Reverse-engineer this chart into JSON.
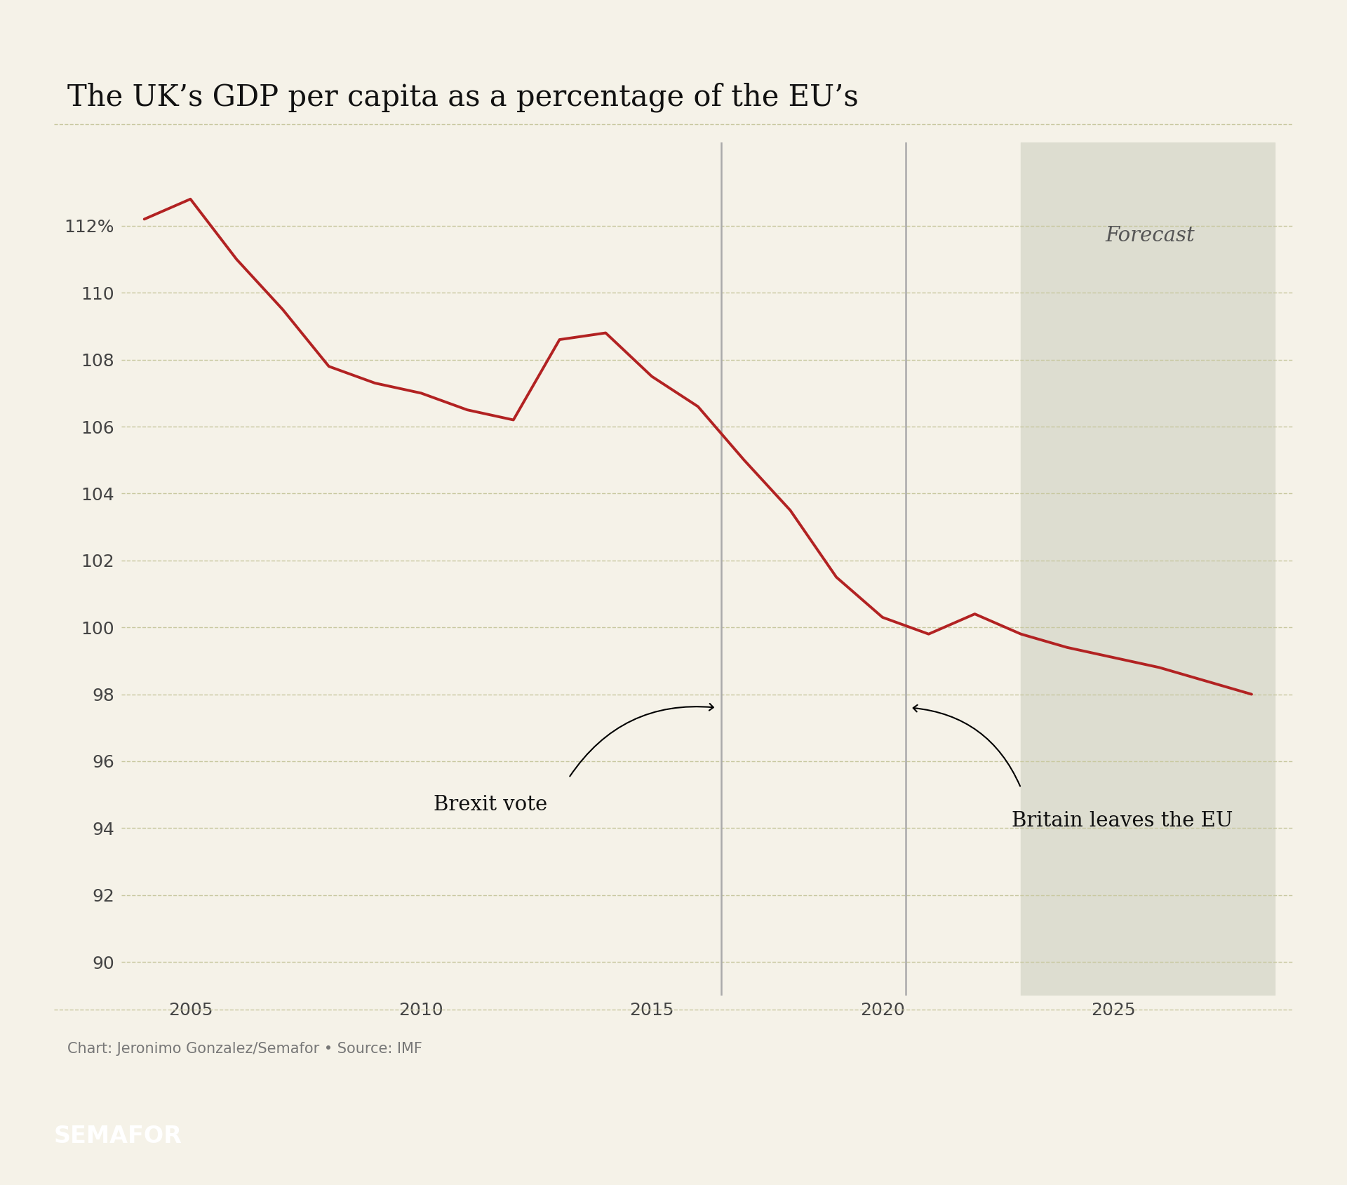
{
  "title": "The UK’s GDP per capita as a percentage of the EU’s",
  "background_color": "#f5f2e8",
  "line_color": "#b22222",
  "line_width": 2.8,
  "years": [
    2004,
    2005,
    2006,
    2007,
    2008,
    2009,
    2010,
    2011,
    2012,
    2013,
    2014,
    2015,
    2016,
    2017,
    2018,
    2019,
    2020,
    2021,
    2022,
    2023,
    2024,
    2025,
    2026,
    2027,
    2028
  ],
  "values": [
    112.2,
    112.8,
    111.0,
    109.5,
    107.8,
    107.3,
    107.0,
    106.5,
    106.2,
    108.6,
    108.8,
    107.5,
    106.6,
    105.0,
    103.5,
    101.5,
    100.3,
    99.8,
    100.4,
    99.8,
    99.4,
    99.1,
    98.8,
    98.4,
    98.0
  ],
  "brexit_vote_year": 2016.5,
  "britain_leaves_year": 2020.5,
  "forecast_start_year": 2023,
  "forecast_end_year": 2028.5,
  "xlim_left": 2003.5,
  "xlim_right": 2028.9,
  "ylim": [
    89.0,
    114.5
  ],
  "yticks": [
    90,
    92,
    94,
    96,
    98,
    100,
    102,
    104,
    106,
    108,
    110,
    112
  ],
  "xticks": [
    2005,
    2010,
    2015,
    2020,
    2025
  ],
  "grid_color": "#c8c8a0",
  "vline_color": "#aaaaaa",
  "forecast_bg_color": "#ddddd0",
  "footer_text": "Chart: Jeronimo Gonzalez/Semafor • Source: IMF",
  "semafor_text": "SEMAFOR",
  "title_fontsize": 30,
  "tick_fontsize": 18,
  "annotation_fontsize": 21,
  "forecast_fontsize": 21,
  "footer_fontsize": 15,
  "semafor_fontsize": 24
}
